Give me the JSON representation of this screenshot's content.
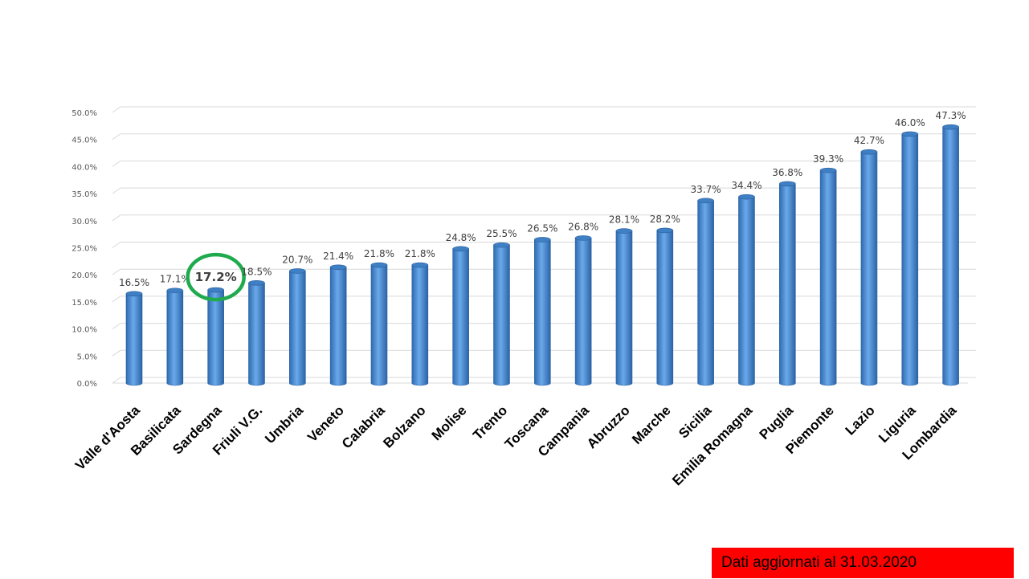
{
  "chart_data": {
    "type": "bar",
    "categories": [
      "Valle d'Aosta",
      "Basilicata",
      "Sardegna",
      "Friuli V.G.",
      "Umbria",
      "Veneto",
      "Calabria",
      "Bolzano",
      "Molise",
      "Trento",
      "Toscana",
      "Campania",
      "Abruzzo",
      "Marche",
      "Sicilia",
      "Emilia Romagna",
      "Puglia",
      "Piemonte",
      "Lazio",
      "Liguria",
      "Lombardia"
    ],
    "values": [
      16.5,
      17.1,
      17.2,
      18.5,
      20.7,
      21.4,
      21.8,
      21.8,
      24.8,
      25.5,
      26.5,
      26.8,
      28.1,
      28.2,
      33.7,
      34.4,
      36.8,
      39.3,
      42.7,
      46.0,
      47.3
    ],
    "data_labels": [
      "16.5%",
      "17.1%",
      "17.2%",
      "18.5%",
      "20.7%",
      "21.4%",
      "21.8%",
      "21.8%",
      "24.8%",
      "25.5%",
      "26.5%",
      "26.8%",
      "28.1%",
      "28.2%",
      "33.7%",
      "34.4%",
      "36.8%",
      "39.3%",
      "42.7%",
      "46.0%",
      "47.3%"
    ],
    "highlighted": "Sardegna",
    "y_ticks": [
      0,
      5,
      10,
      15,
      20,
      25,
      30,
      35,
      40,
      45,
      50
    ],
    "y_tick_labels": [
      "0.0%",
      "5.0%",
      "10.0%",
      "15.0%",
      "20.0%",
      "25.0%",
      "30.0%",
      "35.0%",
      "40.0%",
      "45.0%",
      "50.0%"
    ],
    "ylim": [
      0,
      50
    ],
    "grid": true,
    "bar_color": "#4a8fd6",
    "highlight_color": "#1faa4d"
  },
  "footnote": "Dati aggiornati al 31.03.2020",
  "footnote_bg": "#ff0000"
}
